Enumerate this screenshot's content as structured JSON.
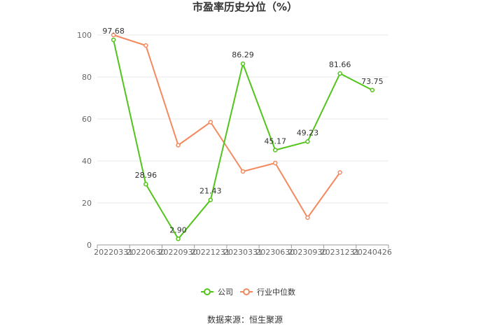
{
  "colors": {
    "company": "#52c41a",
    "industry": "#f4895f",
    "grid": "#e8e8e8",
    "axis": "#999999",
    "text": "#333333",
    "tick_text": "#666666"
  },
  "chart_data": {
    "type": "line",
    "title": "市盈率历史分位（%）",
    "categories": [
      "20220331",
      "20220630",
      "20220930",
      "20221231",
      "20230331",
      "20230630",
      "20230930",
      "20231231",
      "20240426"
    ],
    "ylim": [
      0,
      100
    ],
    "yticks": [
      0,
      20,
      40,
      60,
      80,
      100
    ],
    "grid": true,
    "legend_position": "bottom-center",
    "series": [
      {
        "name": "公司",
        "values": [
          97.68,
          28.96,
          2.9,
          21.43,
          86.29,
          45.17,
          49.23,
          81.66,
          73.75
        ],
        "labels": [
          "97.68",
          "28.96",
          "2.90",
          "21.43",
          "86.29",
          "45.17",
          "49.23",
          "81.66",
          "73.75"
        ]
      },
      {
        "name": "行业中位数",
        "values": [
          100,
          95,
          47.5,
          58.5,
          35,
          39,
          13,
          34.5,
          null
        ]
      }
    ]
  },
  "footer": {
    "source": "数据来源：恒生聚源"
  }
}
